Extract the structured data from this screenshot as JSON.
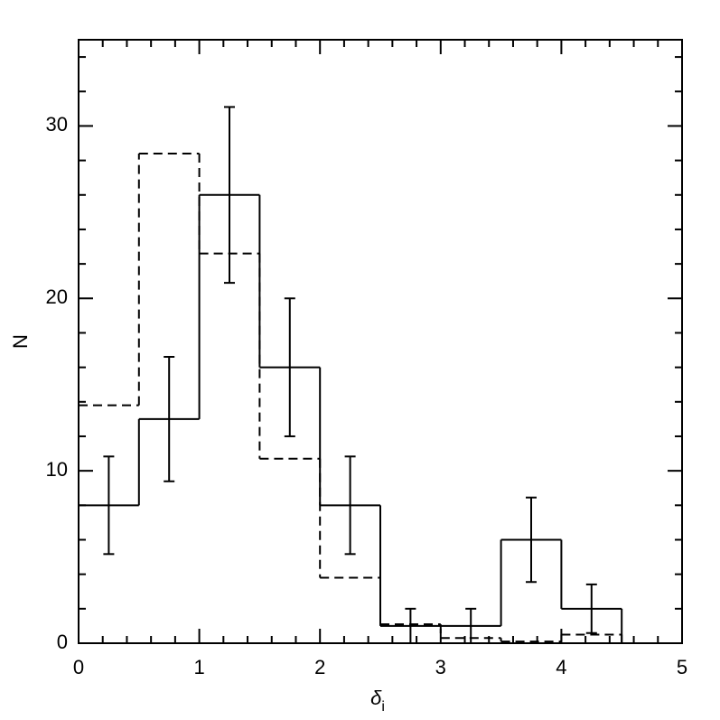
{
  "chart_data": {
    "type": "histogram",
    "xlabel": "δ",
    "xlabel_subscript": "i",
    "ylabel": "N",
    "bins": [
      0,
      0.5,
      1,
      1.5,
      2,
      2.5,
      3,
      3.5,
      4,
      4.5
    ],
    "series": [
      {
        "style": "solid",
        "color": "#000000",
        "values": [
          8,
          13,
          26,
          16,
          8,
          1,
          1,
          6,
          2
        ],
        "errors": [
          2.83,
          3.61,
          5.1,
          4,
          2.83,
          1,
          1,
          2.45,
          1.41
        ]
      },
      {
        "style": "dashed",
        "color": "#000000",
        "values": [
          13.8,
          28.4,
          22.6,
          10.7,
          3.8,
          1.1,
          0.3,
          0.1,
          0.5
        ]
      }
    ],
    "xlim": [
      0,
      5
    ],
    "ylim": [
      0,
      35
    ],
    "xticks": [
      0,
      1,
      2,
      3,
      4,
      5
    ],
    "yticks": [
      0,
      10,
      20,
      30
    ],
    "xminorticks": [
      0.2,
      0.4,
      0.6,
      0.8,
      1.2,
      1.4,
      1.6,
      1.8,
      2.2,
      2.4,
      2.6,
      2.8,
      3.2,
      3.4,
      3.6,
      3.8,
      4.2,
      4.4,
      4.6,
      4.8
    ],
    "yminorticks": [
      2,
      4,
      6,
      8,
      12,
      14,
      16,
      18,
      22,
      24,
      26,
      28,
      32,
      34
    ]
  }
}
